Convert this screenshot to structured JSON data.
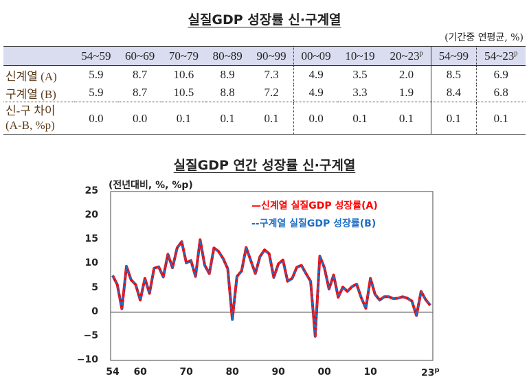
{
  "table": {
    "title": "실질GDP 성장률 신·구계열",
    "unit": "(기간중 연평균, %)",
    "columns": [
      "54~59",
      "60~69",
      "70~79",
      "80~89",
      "90~99",
      "00~09",
      "10~19",
      "20~23",
      "54~99",
      "54~23"
    ],
    "column_superscripts": [
      "",
      "",
      "",
      "",
      "",
      "",
      "",
      "p",
      "",
      "p"
    ],
    "rows": [
      {
        "label": "신계열 (A)",
        "values": [
          "5.9",
          "8.7",
          "10.6",
          "8.9",
          "7.3",
          "4.9",
          "3.5",
          "2.0",
          "8.5",
          "6.9"
        ]
      },
      {
        "label": "구계열 (B)",
        "values": [
          "5.9",
          "8.7",
          "10.5",
          "8.8",
          "7.2",
          "4.9",
          "3.3",
          "1.9",
          "8.4",
          "6.8"
        ]
      },
      {
        "label": "신-구 차이",
        "label2": "(A-B, %p)",
        "values": [
          "0.0",
          "0.0",
          "0.1",
          "0.1",
          "0.1",
          "0.0",
          "0.1",
          "0.1",
          "0.1",
          "0.1"
        ]
      }
    ]
  },
  "chart_data": {
    "type": "line",
    "title": "실질GDP 연간 성장률 신·구계열",
    "ylabel": "(전년대비, %, %p)",
    "ylim": [
      -10,
      25
    ],
    "yticks": [
      "25",
      "20",
      "15",
      "10",
      "5",
      "0",
      "−5",
      "−10"
    ],
    "ytick_values": [
      25,
      20,
      15,
      10,
      5,
      0,
      -5,
      -10
    ],
    "xticks": [
      "54",
      "60",
      "70",
      "80",
      "90",
      "00",
      "10",
      "23"
    ],
    "xtick_years": [
      1954,
      1960,
      1970,
      1980,
      1990,
      2000,
      2010,
      2023
    ],
    "xtick_last_superscript": "p",
    "x_start": 1954,
    "series": [
      {
        "name": "신계열 실질GDP 성장률(A)",
        "legend_marker": "—",
        "color": "#ff0000",
        "style": "solid",
        "values": [
          7.6,
          5.7,
          0.7,
          9.5,
          6.7,
          5.7,
          2.5,
          7.0,
          3.9,
          9.1,
          9.4,
          7.3,
          12.0,
          9.2,
          13.3,
          14.6,
          10.2,
          10.7,
          7.4,
          15.0,
          9.7,
          8.0,
          13.3,
          12.6,
          11.1,
          9.0,
          -1.5,
          7.4,
          8.5,
          13.4,
          10.7,
          8.0,
          11.5,
          12.9,
          12.1,
          7.2,
          10.0,
          10.8,
          6.4,
          7.0,
          9.3,
          9.7,
          8.0,
          6.4,
          -5.0,
          11.6,
          9.2,
          4.8,
          7.7,
          3.1,
          5.2,
          4.3,
          5.3,
          5.8,
          3.0,
          0.8,
          7.0,
          3.7,
          2.5,
          3.2,
          3.2,
          2.8,
          2.9,
          3.2,
          2.9,
          2.3,
          -0.7,
          4.3,
          2.6,
          1.4
        ]
      },
      {
        "name": "구계열 실질GDP 성장률(B)",
        "legend_marker": "--",
        "color": "#1f6fc4",
        "style": "dashed",
        "values": [
          7.6,
          5.7,
          0.7,
          9.5,
          6.7,
          5.7,
          2.5,
          7.0,
          3.9,
          9.1,
          9.4,
          7.3,
          12.0,
          9.2,
          13.3,
          14.6,
          10.2,
          10.6,
          7.4,
          14.9,
          9.6,
          8.0,
          13.2,
          12.5,
          11.0,
          9.0,
          -1.6,
          7.3,
          8.4,
          13.3,
          10.6,
          7.9,
          11.4,
          12.8,
          12.0,
          7.1,
          9.9,
          10.7,
          6.3,
          6.9,
          9.2,
          9.6,
          7.9,
          6.3,
          -5.1,
          11.5,
          9.1,
          4.9,
          7.7,
          3.1,
          5.2,
          4.3,
          5.3,
          5.8,
          3.0,
          0.8,
          6.8,
          3.7,
          2.4,
          3.2,
          3.2,
          2.8,
          2.9,
          3.2,
          2.9,
          2.2,
          -0.7,
          4.3,
          2.6,
          1.4
        ]
      }
    ],
    "legend_position": "top-right"
  }
}
